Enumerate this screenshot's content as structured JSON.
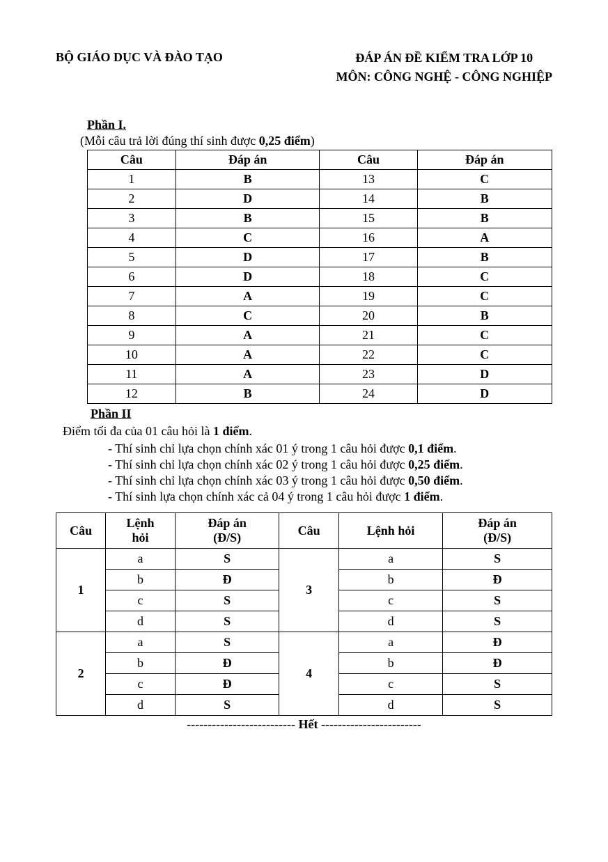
{
  "header": {
    "left": "BỘ GIÁO DỤC VÀ ĐÀO TẠO",
    "right_line1": "ĐÁP ÁN ĐỀ KIỂM TRA LỚP 10",
    "right_line2": "MÔN: CÔNG NGHỆ - CÔNG NGHIỆP"
  },
  "part1": {
    "title": "Phần I.",
    "note_prefix": "(Mỗi câu trả lời đúng thí sinh được ",
    "note_bold": "0,25 điểm",
    "note_suffix": ")",
    "headers": {
      "cau": "Câu",
      "dapan": "Đáp án"
    },
    "rows": [
      {
        "q1": "1",
        "a1": "B",
        "q2": "13",
        "a2": "C"
      },
      {
        "q1": "2",
        "a1": "D",
        "q2": "14",
        "a2": "B"
      },
      {
        "q1": "3",
        "a1": "B",
        "q2": "15",
        "a2": "B"
      },
      {
        "q1": "4",
        "a1": "C",
        "q2": "16",
        "a2": "A"
      },
      {
        "q1": "5",
        "a1": "D",
        "q2": "17",
        "a2": "B"
      },
      {
        "q1": "6",
        "a1": "D",
        "q2": "18",
        "a2": "C"
      },
      {
        "q1": "7",
        "a1": "A",
        "q2": "19",
        "a2": "C"
      },
      {
        "q1": "8",
        "a1": "C",
        "q2": "20",
        "a2": "B"
      },
      {
        "q1": "9",
        "a1": "A",
        "q2": "21",
        "a2": "C"
      },
      {
        "q1": "10",
        "a1": "A",
        "q2": "22",
        "a2": "C"
      },
      {
        "q1": "11",
        "a1": "A",
        "q2": "23",
        "a2": "D"
      },
      {
        "q1": "12",
        "a1": "B",
        "q2": "24",
        "a2": "D"
      }
    ]
  },
  "part2": {
    "title": "Phần II",
    "intro_prefix": "Điểm tối đa của 01 câu hỏi là ",
    "intro_bold": "1 điểm",
    "intro_suffix": ".",
    "bullets": [
      {
        "prefix": "- Thí sinh chỉ lựa chọn chính xác 01 ý trong 1 câu hỏi được ",
        "bold": "0,1 điểm",
        "suffix": "."
      },
      {
        "prefix": "- Thí sinh chỉ lựa chọn chính xác 02 ý trong 1 câu hỏi được ",
        "bold": "0,25 điểm",
        "suffix": "."
      },
      {
        "prefix": "- Thí sinh chỉ lựa chọn chính xác 03 ý trong 1 câu hỏi được ",
        "bold": "0,50 điểm",
        "suffix": "."
      },
      {
        "prefix": "- Thí sinh lựa chọn chính xác cả 04 ý trong 1 câu hỏi được ",
        "bold": "1 điểm",
        "suffix": "."
      }
    ],
    "headers": {
      "cau": "Câu",
      "lenh_hoi_1a": "Lệnh",
      "lenh_hoi_1b": "hỏi",
      "dapan_a": "Đáp án",
      "dapan_b": "(Đ/S)",
      "lenh_hoi_2": "Lệnh hỏi"
    },
    "groups": [
      {
        "q1": "1",
        "q2": "3",
        "rows": [
          {
            "l1": "a",
            "a1": "S",
            "l2": "a",
            "a2": "S"
          },
          {
            "l1": "b",
            "a1": "Đ",
            "l2": "b",
            "a2": "Đ"
          },
          {
            "l1": "c",
            "a1": "S",
            "l2": "c",
            "a2": "S"
          },
          {
            "l1": "d",
            "a1": "S",
            "l2": "d",
            "a2": "S"
          }
        ]
      },
      {
        "q1": "2",
        "q2": "4",
        "rows": [
          {
            "l1": "a",
            "a1": "S",
            "l2": "a",
            "a2": "Đ"
          },
          {
            "l1": "b",
            "a1": "Đ",
            "l2": "b",
            "a2": "Đ"
          },
          {
            "l1": "c",
            "a1": "Đ",
            "l2": "c",
            "a2": "S"
          },
          {
            "l1": "d",
            "a1": "S",
            "l2": "d",
            "a2": "S"
          }
        ]
      }
    ]
  },
  "end": "-------------------------- Hết ------------------------"
}
